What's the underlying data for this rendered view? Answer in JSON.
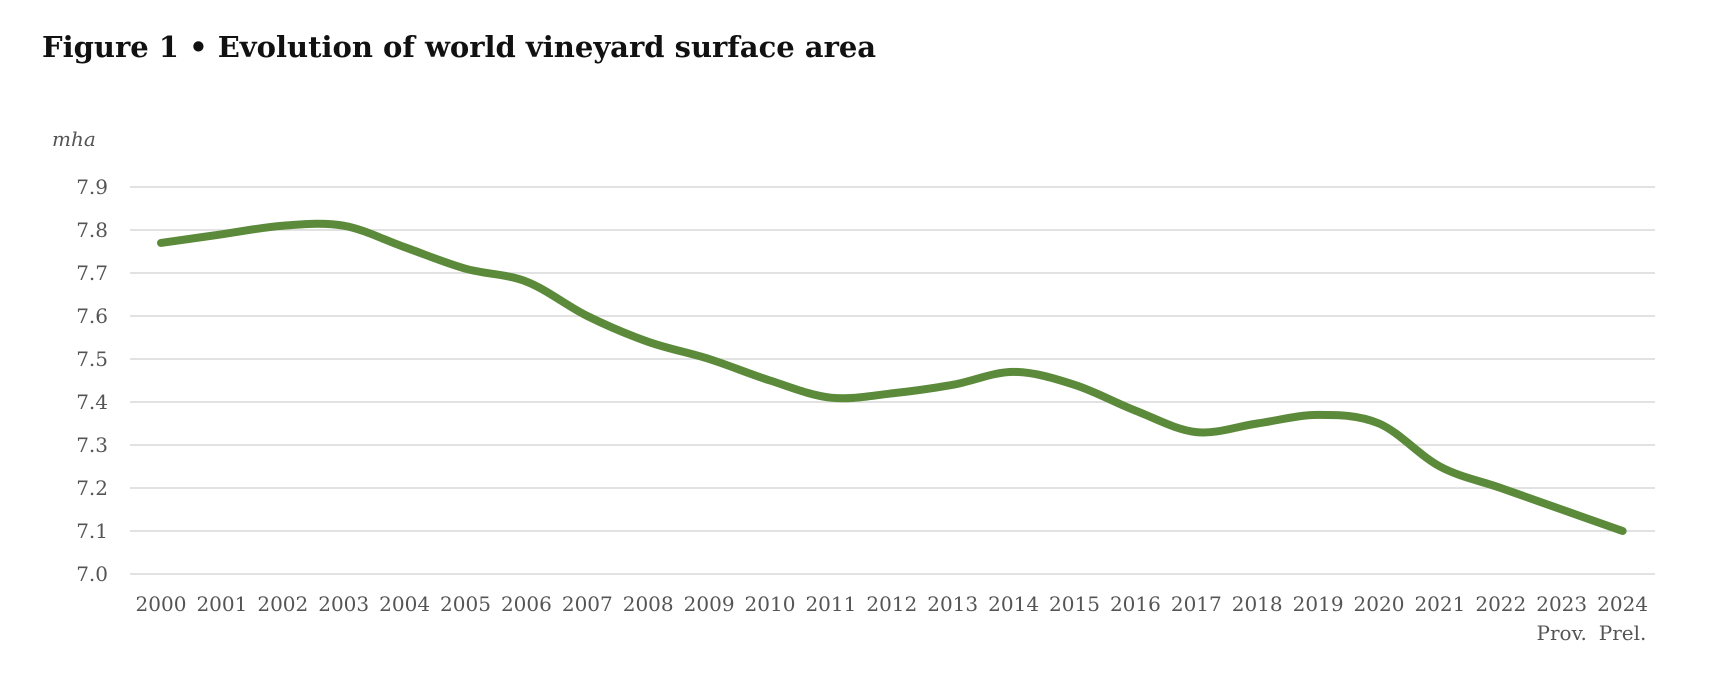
{
  "figure_title": "Figure 1 • Evolution of world vineyard surface area",
  "chart_data": {
    "type": "line",
    "title": "Figure 1 • Evolution of world vineyard surface area",
    "ylabel": "mha",
    "xlabel": "",
    "ylim": [
      7.0,
      7.9
    ],
    "yticks": [
      "7.0",
      "7.1",
      "7.2",
      "7.3",
      "7.4",
      "7.5",
      "7.6",
      "7.7",
      "7.8",
      "7.9"
    ],
    "grid": true,
    "categories": [
      "2000",
      "2001",
      "2002",
      "2003",
      "2004",
      "2005",
      "2006",
      "2007",
      "2008",
      "2009",
      "2010",
      "2011",
      "2012",
      "2013",
      "2014",
      "2015",
      "2016",
      "2017",
      "2018",
      "2019",
      "2020",
      "2021",
      "2022",
      "2023",
      "2024"
    ],
    "category_notes": [
      {
        "category": "2023",
        "note": "Prov."
      },
      {
        "category": "2024",
        "note": "Prel."
      }
    ],
    "series": [
      {
        "color": "#5b8a3a",
        "values": [
          7.77,
          7.79,
          7.81,
          7.81,
          7.76,
          7.71,
          7.68,
          7.6,
          7.54,
          7.5,
          7.45,
          7.41,
          7.42,
          7.44,
          7.47,
          7.44,
          7.38,
          7.33,
          7.35,
          7.37,
          7.35,
          7.25,
          7.2,
          7.15,
          7.1
        ]
      }
    ]
  }
}
